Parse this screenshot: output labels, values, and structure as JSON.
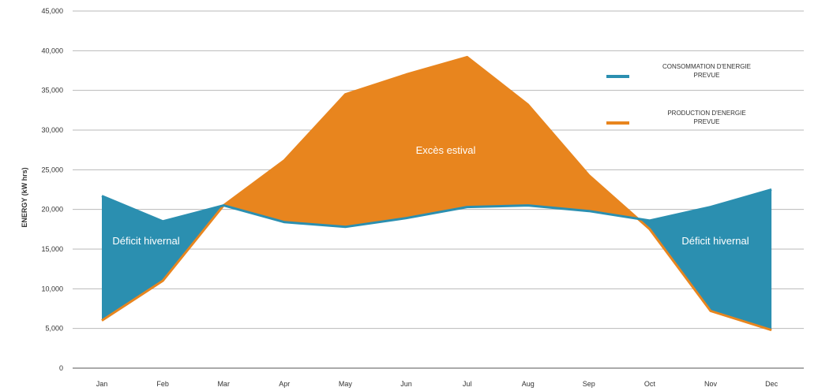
{
  "chart_data": {
    "type": "area",
    "title": "",
    "xlabel": "",
    "ylabel": "ENERGY  (kW hrs)",
    "categories": [
      "Jan",
      "Feb",
      "Mar",
      "Apr",
      "May",
      "Jun",
      "Jul",
      "Aug",
      "Sep",
      "Oct",
      "Nov",
      "Dec"
    ],
    "ylim": [
      0,
      45000
    ],
    "yticks": [
      "0",
      "5,000",
      "10,000",
      "15,000",
      "20,000",
      "25,000",
      "30,000",
      "35,000",
      "40,000",
      "45,000"
    ],
    "ytick_values": [
      0,
      5000,
      10000,
      15000,
      20000,
      25000,
      30000,
      35000,
      40000,
      45000
    ],
    "grid": true,
    "legend_position": "top-right",
    "series": [
      {
        "name": "CONSOMMATION D'ENERGIE PREVUE",
        "legend_lines": [
          "CONSOMMATION D'ENERGIE",
          "PREVUE"
        ],
        "color": "#2b8fb0",
        "values": [
          21700,
          18500,
          20500,
          18400,
          17800,
          18900,
          20300,
          20500,
          19800,
          18600,
          20300,
          22500
        ]
      },
      {
        "name": "PRODUCTION D'ENERGIE PREVUE",
        "legend_lines": [
          "PRODUCTION D'ENERGIE",
          "PREVUE"
        ],
        "color": "#e8851e",
        "values": [
          6000,
          11000,
          20500,
          26200,
          34500,
          37000,
          39200,
          33200,
          24300,
          17500,
          7200,
          4800
        ]
      }
    ],
    "annotations": [
      {
        "text": "Déficit hivernal",
        "month": "Jan-Feb",
        "y": 15600
      },
      {
        "text": "Excès estival",
        "month": "Jun",
        "y": 27000
      },
      {
        "text": "Déficit hivernal",
        "month": "Nov-Dec",
        "y": 15600
      }
    ]
  }
}
